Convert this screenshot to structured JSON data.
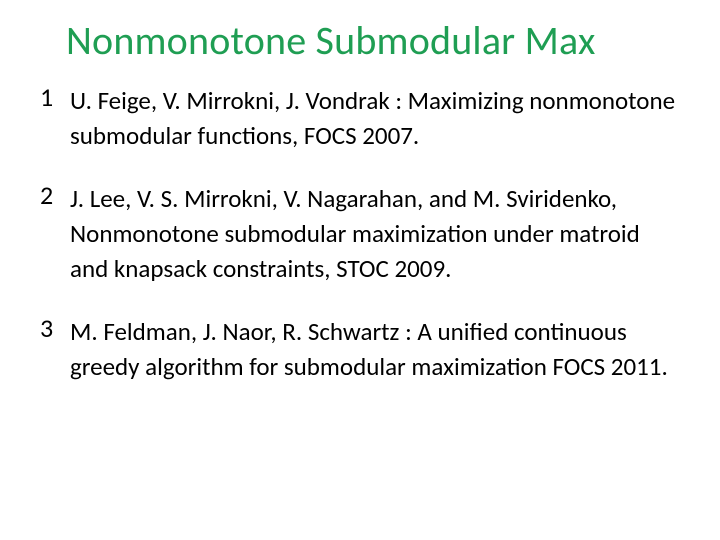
{
  "colors": {
    "title": "#1f9e53",
    "body": "#000000",
    "number": "#000000",
    "background": "#ffffff"
  },
  "typography": {
    "title_fontsize_pt": 30,
    "body_fontsize_pt": 19,
    "number_fontsize_pt": 20,
    "font_family": "Calibri"
  },
  "title": "Nonmonotone Submodular Max",
  "references": [
    {
      "number": "1",
      "text": "U. Feige, V. Mirrokni, J. Vondrak : Maximizing nonmonotone submodular functions,  FOCS 2007."
    },
    {
      "number": "2",
      "text": "J. Lee, V. S.  Mirrokni, V. Nagarahan, and M. Sviridenko, Nonmonotone submodular maximization under matroid and knapsack constraints,  STOC 2009."
    },
    {
      "number": "3",
      "text": "M. Feldman, J. Naor, R. Schwartz : A unified continuous greedy algorithm for submodular maximization FOCS 2011."
    }
  ]
}
